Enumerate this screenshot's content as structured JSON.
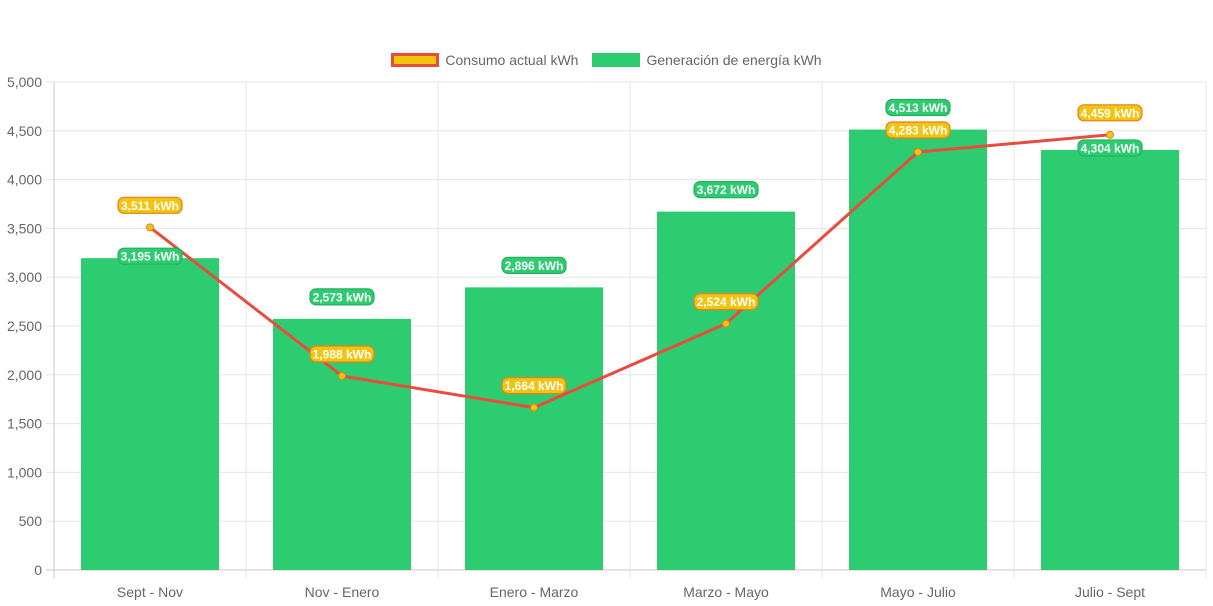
{
  "chart_data": {
    "type": "bar",
    "categories": [
      "Sept - Nov",
      "Nov - Enero",
      "Enero - Marzo",
      "Marzo - Mayo",
      "Mayo - Julio",
      "Julio - Sept"
    ],
    "series": [
      {
        "name": "Consumo actual kWh",
        "type": "line",
        "values": [
          3511,
          1988,
          1664,
          2524,
          4283,
          4459
        ],
        "labels": [
          "3,511 kWh",
          "1,988 kWh",
          "1,664 kWh",
          "2,524 kWh",
          "4,283 kWh",
          "4,459 kWh"
        ],
        "color": "#e74c3c",
        "fill": "#f1c40f"
      },
      {
        "name": "Generación de energía kWh",
        "type": "bar",
        "values": [
          3195,
          2573,
          2896,
          3672,
          4513,
          4304
        ],
        "labels": [
          "3,195 kWh",
          "2,573 kWh",
          "2,896 kWh",
          "3,672 kWh",
          "4,513 kWh",
          "4,304 kWh"
        ],
        "color": "#2ecc71"
      }
    ],
    "yticks": [
      "0",
      "500",
      "1,000",
      "1,500",
      "2,000",
      "2,500",
      "3,000",
      "3,500",
      "4,000",
      "4,500",
      "5,000"
    ],
    "ylim": [
      0,
      5000
    ],
    "grid": true,
    "legend_position": "top"
  }
}
